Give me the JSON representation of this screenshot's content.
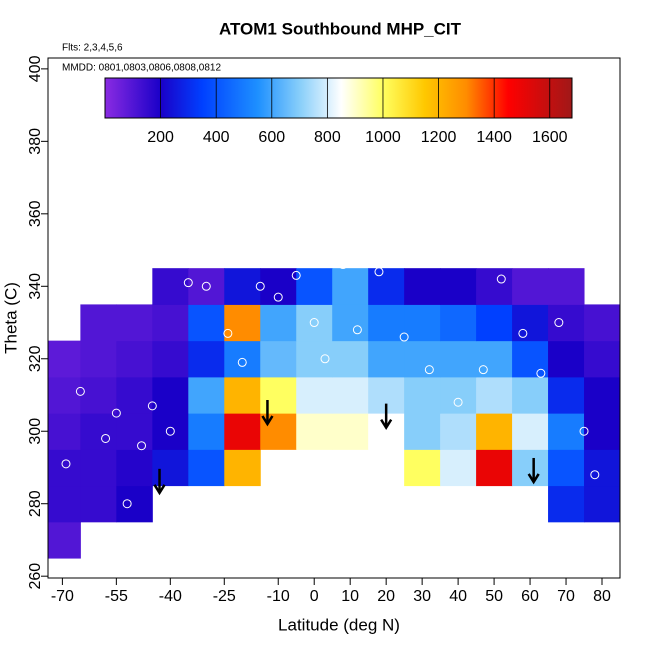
{
  "chart_data": {
    "type": "heatmap",
    "title": "ATOM1 Southbound MHP_CIT",
    "annotations": [
      "Flts: 2,3,4,5,6",
      "MMDD: 0801,0803,0806,0808,0812"
    ],
    "x_label": "Latitude (deg N)",
    "y_label": "Theta (C)",
    "xlim": [
      -74,
      85
    ],
    "ylim": [
      259.5,
      403
    ],
    "xticks": [
      -70,
      -55,
      -40,
      -25,
      -10,
      0,
      10,
      20,
      30,
      40,
      50,
      60,
      70,
      80
    ],
    "yticks": [
      260,
      280,
      300,
      320,
      340,
      360,
      380,
      400
    ],
    "x": [
      -70,
      -60,
      -50,
      -40,
      -30,
      -20,
      -10,
      0,
      10,
      20,
      30,
      40,
      50,
      60,
      70,
      80
    ],
    "y": [
      270,
      280,
      290,
      300,
      310,
      320,
      330,
      340
    ],
    "values": [
      [
        100,
        null,
        null,
        null,
        null,
        null,
        null,
        null,
        null,
        null,
        null,
        null,
        null,
        null,
        null,
        null
      ],
      [
        150,
        150,
        200,
        null,
        null,
        null,
        null,
        null,
        null,
        null,
        null,
        null,
        null,
        null,
        300,
        250
      ],
      [
        150,
        150,
        180,
        250,
        400,
        1200,
        null,
        null,
        null,
        null,
        1000,
        800,
        1500,
        700,
        400,
        250
      ],
      [
        120,
        150,
        150,
        200,
        500,
        1500,
        1300,
        900,
        900,
        850,
        700,
        750,
        1200,
        800,
        500,
        200
      ],
      [
        100,
        120,
        150,
        200,
        600,
        1200,
        1000,
        800,
        800,
        750,
        700,
        700,
        750,
        700,
        300,
        200
      ],
      [
        80,
        100,
        120,
        150,
        300,
        500,
        650,
        700,
        700,
        600,
        600,
        600,
        600,
        400,
        200,
        150
      ],
      [
        null,
        100,
        100,
        120,
        400,
        1300,
        600,
        700,
        600,
        500,
        500,
        450,
        350,
        250,
        150,
        120
      ],
      [
        null,
        null,
        null,
        150,
        100,
        250,
        200,
        400,
        600,
        300,
        200,
        200,
        150,
        100,
        100,
        null
      ]
    ],
    "points": {
      "x": [
        -69,
        -65,
        -58,
        -55,
        -52,
        -48,
        -45,
        -43,
        -40,
        -35,
        -30,
        -24,
        -20,
        -15,
        -10,
        -5,
        0,
        3,
        8,
        12,
        18,
        25,
        32,
        40,
        47,
        52,
        58,
        63,
        68,
        75,
        78
      ],
      "y": [
        291,
        311,
        298,
        305,
        280,
        296,
        307,
        278,
        300,
        341,
        340,
        327,
        319,
        340,
        337,
        343,
        330,
        320,
        346,
        328,
        344,
        326,
        317,
        308,
        317,
        342,
        327,
        316,
        330,
        300,
        288
      ]
    },
    "arrows": {
      "x": [
        -43,
        -13,
        20,
        61
      ],
      "y": [
        283,
        302,
        301,
        286
      ]
    },
    "colorbar": {
      "lim": [
        0,
        1680
      ],
      "ticks": [
        200,
        400,
        600,
        800,
        1000,
        1200,
        1400,
        1600
      ],
      "stops": [
        [
          0,
          "#8a2be2"
        ],
        [
          200,
          "#1a00c8"
        ],
        [
          350,
          "#0040ff"
        ],
        [
          550,
          "#1e90ff"
        ],
        [
          700,
          "#87cefa"
        ],
        [
          850,
          "#ffffff"
        ],
        [
          1000,
          "#ffff60"
        ],
        [
          1150,
          "#ffc800"
        ],
        [
          1300,
          "#ff8c00"
        ],
        [
          1450,
          "#ff0000"
        ],
        [
          1680,
          "#a01818"
        ]
      ]
    },
    "point_color": "#ffffff",
    "arrow_color": "#000000"
  }
}
